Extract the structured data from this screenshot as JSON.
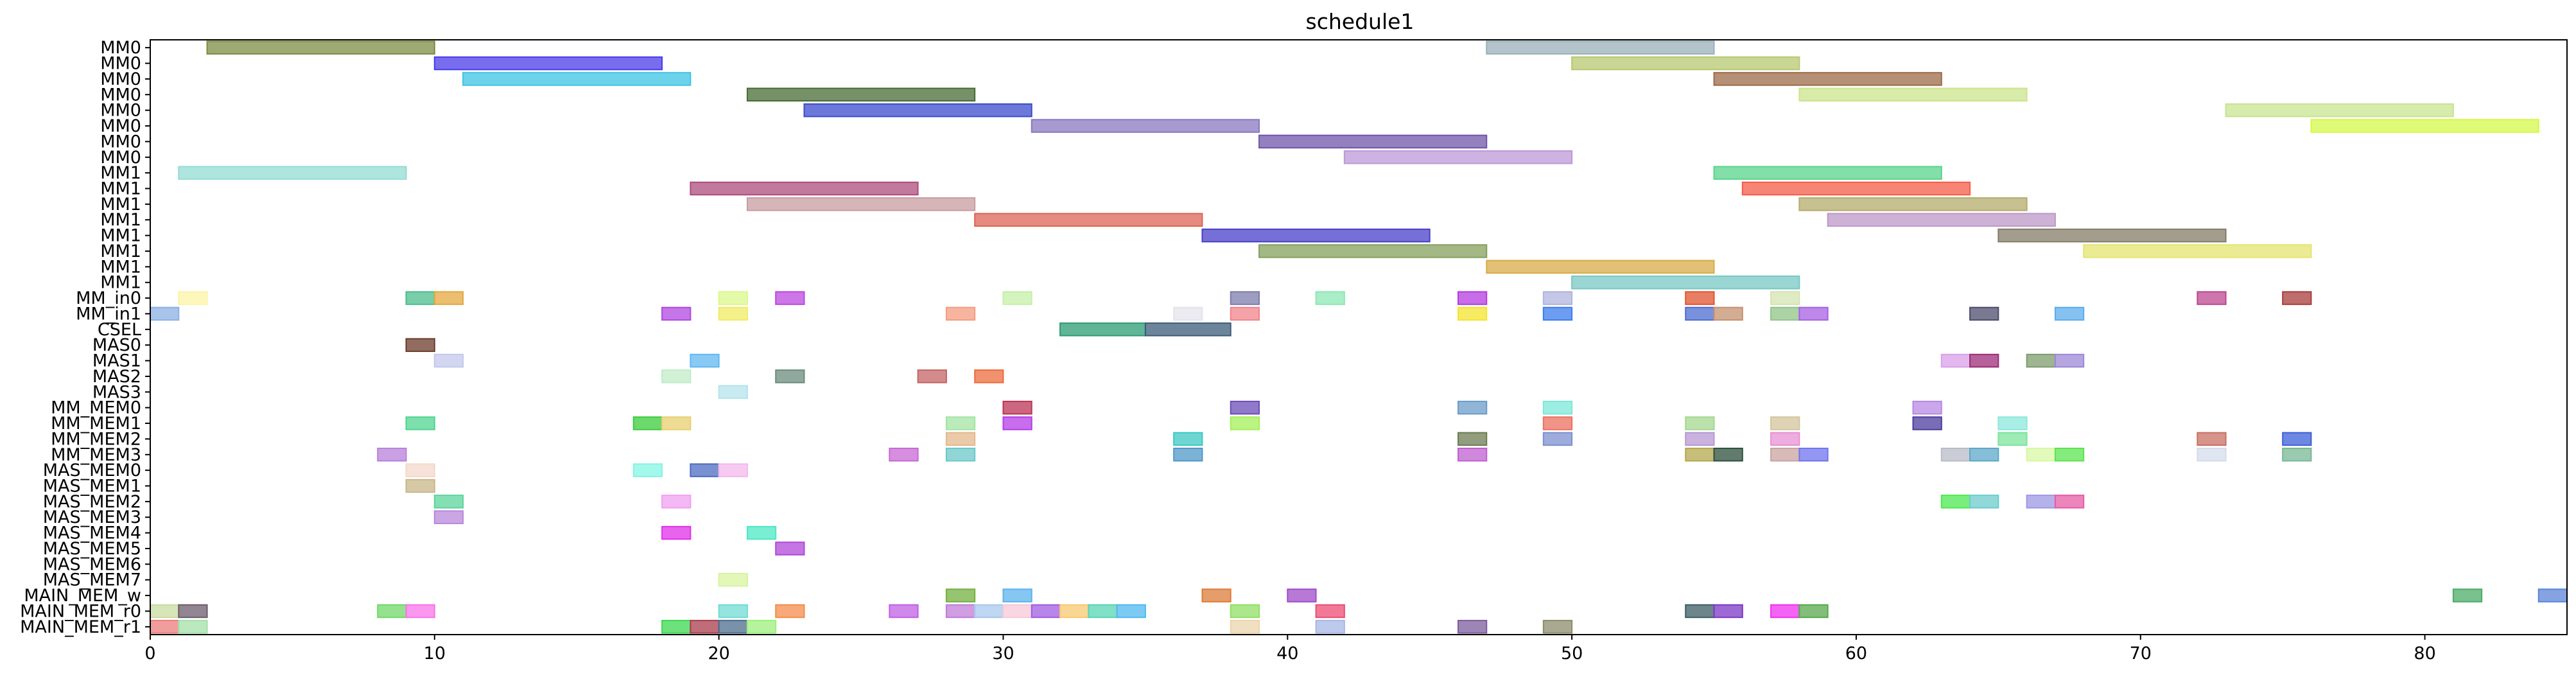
{
  "chart_data": {
    "type": "gantt",
    "title": "schedule1",
    "xlabel": "",
    "ylabel": "",
    "xlim": [
      0,
      85
    ],
    "x_ticks": [
      0,
      10,
      20,
      30,
      40,
      50,
      60,
      70,
      80
    ],
    "grid": false,
    "rows": [
      "MM0",
      "MM0",
      "MM0",
      "MM0",
      "MM0",
      "MM0",
      "MM0",
      "MM0",
      "MM1",
      "MM1",
      "MM1",
      "MM1",
      "MM1",
      "MM1",
      "MM1",
      "MM1",
      "MM_in0",
      "MM_in1",
      "CSEL",
      "MAS0",
      "MAS1",
      "MAS2",
      "MAS3",
      "MM_MEM0",
      "MM_MEM1",
      "MM_MEM2",
      "MM_MEM3",
      "MAS_MEM0",
      "MAS_MEM1",
      "MAS_MEM2",
      "MAS_MEM3",
      "MAS_MEM4",
      "MAS_MEM5",
      "MAS_MEM6",
      "MAS_MEM7",
      "MAIN_MEM_w",
      "MAIN_MEM_r0",
      "MAIN_MEM_r1"
    ],
    "tasks": [
      {
        "row": 0,
        "start": 2,
        "end": 10,
        "color": "#7d8c44"
      },
      {
        "row": 0,
        "start": 47,
        "end": 55,
        "color": "#9ab0b8"
      },
      {
        "row": 1,
        "start": 10,
        "end": 18,
        "color": "#4a3ce8"
      },
      {
        "row": 1,
        "start": 50,
        "end": 58,
        "color": "#b8c870"
      },
      {
        "row": 2,
        "start": 11,
        "end": 19,
        "color": "#3cc4e4"
      },
      {
        "row": 2,
        "start": 55,
        "end": 63,
        "color": "#9c6a48"
      },
      {
        "row": 3,
        "start": 21,
        "end": 29,
        "color": "#486c34"
      },
      {
        "row": 3,
        "start": 58,
        "end": 66,
        "color": "#cce48c"
      },
      {
        "row": 4,
        "start": 23,
        "end": 31,
        "color": "#3c4ccc"
      },
      {
        "row": 4,
        "start": 73,
        "end": 81,
        "color": "#c8e490"
      },
      {
        "row": 5,
        "start": 31,
        "end": 39,
        "color": "#8878c0"
      },
      {
        "row": 5,
        "start": 76,
        "end": 84,
        "color": "#d4f848"
      },
      {
        "row": 6,
        "start": 39,
        "end": 47,
        "color": "#7056a8"
      },
      {
        "row": 7,
        "start": 42,
        "end": 50,
        "color": "#bc98d8"
      },
      {
        "row": 8,
        "start": 1,
        "end": 9,
        "color": "#94dcd4"
      },
      {
        "row": 8,
        "start": 55,
        "end": 63,
        "color": "#58d48c"
      },
      {
        "row": 9,
        "start": 19,
        "end": 27,
        "color": "#ac4c7c"
      },
      {
        "row": 9,
        "start": 56,
        "end": 64,
        "color": "#f45c48"
      },
      {
        "row": 10,
        "start": 21,
        "end": 29,
        "color": "#c89ca0"
      },
      {
        "row": 10,
        "start": 58,
        "end": 66,
        "color": "#b4ac6c"
      },
      {
        "row": 11,
        "start": 29,
        "end": 37,
        "color": "#dc6454"
      },
      {
        "row": 11,
        "start": 59,
        "end": 67,
        "color": "#bc98c8"
      },
      {
        "row": 12,
        "start": 37,
        "end": 45,
        "color": "#4840c8"
      },
      {
        "row": 12,
        "start": 65,
        "end": 73,
        "color": "#847c68"
      },
      {
        "row": 13,
        "start": 39,
        "end": 47,
        "color": "#84a05c"
      },
      {
        "row": 13,
        "start": 68,
        "end": 76,
        "color": "#e4e470"
      },
      {
        "row": 14,
        "start": 47,
        "end": 55,
        "color": "#d8ac48"
      },
      {
        "row": 15,
        "start": 50,
        "end": 58,
        "color": "#78c8c4"
      },
      {
        "row": 16,
        "start": 1,
        "end": 2,
        "color": "#fcf4a8"
      },
      {
        "row": 16,
        "start": 9,
        "end": 10,
        "color": "#4cbc8c"
      },
      {
        "row": 16,
        "start": 10,
        "end": 11,
        "color": "#e4a840"
      },
      {
        "row": 16,
        "start": 20,
        "end": 21,
        "color": "#dcf88c"
      },
      {
        "row": 16,
        "start": 22,
        "end": 23,
        "color": "#bc48e0"
      },
      {
        "row": 16,
        "start": 30,
        "end": 31,
        "color": "#c4f0a8"
      },
      {
        "row": 16,
        "start": 38,
        "end": 39,
        "color": "#7c7cac"
      },
      {
        "row": 16,
        "start": 41,
        "end": 42,
        "color": "#8ce8b4"
      },
      {
        "row": 16,
        "start": 46,
        "end": 47,
        "color": "#b43ce0"
      },
      {
        "row": 16,
        "start": 49,
        "end": 50,
        "color": "#b0b4dc"
      },
      {
        "row": 16,
        "start": 54,
        "end": 55,
        "color": "#e05430"
      },
      {
        "row": 16,
        "start": 57,
        "end": 58,
        "color": "#d4e4b0"
      },
      {
        "row": 16,
        "start": 72,
        "end": 73,
        "color": "#bc4890"
      },
      {
        "row": 16,
        "start": 75,
        "end": 76,
        "color": "#a83c3c"
      },
      {
        "row": 17,
        "start": 0,
        "end": 1,
        "color": "#8cb0e4"
      },
      {
        "row": 17,
        "start": 18,
        "end": 19,
        "color": "#b048e0"
      },
      {
        "row": 17,
        "start": 20,
        "end": 21,
        "color": "#f0ec64"
      },
      {
        "row": 17,
        "start": 28,
        "end": 29,
        "color": "#f49c80"
      },
      {
        "row": 17,
        "start": 36,
        "end": 37,
        "color": "#e4e4ec"
      },
      {
        "row": 17,
        "start": 38,
        "end": 39,
        "color": "#f0848c"
      },
      {
        "row": 17,
        "start": 46,
        "end": 47,
        "color": "#f4e430"
      },
      {
        "row": 17,
        "start": 49,
        "end": 50,
        "color": "#3c7cec"
      },
      {
        "row": 17,
        "start": 54,
        "end": 55,
        "color": "#4c6cd0"
      },
      {
        "row": 17,
        "start": 55,
        "end": 56,
        "color": "#c49070"
      },
      {
        "row": 17,
        "start": 57,
        "end": 58,
        "color": "#90c488"
      },
      {
        "row": 17,
        "start": 58,
        "end": 59,
        "color": "#a860e4"
      },
      {
        "row": 17,
        "start": 64,
        "end": 65,
        "color": "#4c4c6c"
      },
      {
        "row": 17,
        "start": 67,
        "end": 68,
        "color": "#5cacec"
      },
      {
        "row": 18,
        "start": 32,
        "end": 35,
        "color": "#2c9c74"
      },
      {
        "row": 18,
        "start": 35,
        "end": 38,
        "color": "#3c5c78"
      },
      {
        "row": 19,
        "start": 9,
        "end": 10,
        "color": "#6c3c2c"
      },
      {
        "row": 20,
        "start": 10,
        "end": 11,
        "color": "#c4c8ec"
      },
      {
        "row": 20,
        "start": 19,
        "end": 20,
        "color": "#60b8f0"
      },
      {
        "row": 20,
        "start": 63,
        "end": 64,
        "color": "#d8a0e8"
      },
      {
        "row": 20,
        "start": 64,
        "end": 65,
        "color": "#9c2c78"
      },
      {
        "row": 20,
        "start": 66,
        "end": 67,
        "color": "#7c9c6c"
      },
      {
        "row": 20,
        "start": 67,
        "end": 68,
        "color": "#9c88d8"
      },
      {
        "row": 21,
        "start": 18,
        "end": 19,
        "color": "#c0ecc8"
      },
      {
        "row": 21,
        "start": 22,
        "end": 23,
        "color": "#6c8c7c"
      },
      {
        "row": 21,
        "start": 27,
        "end": 28,
        "color": "#c46464"
      },
      {
        "row": 21,
        "start": 29,
        "end": 30,
        "color": "#ec6c3c"
      },
      {
        "row": 22,
        "start": 20,
        "end": 21,
        "color": "#b4e4ec"
      },
      {
        "row": 23,
        "start": 30,
        "end": 31,
        "color": "#bc3454"
      },
      {
        "row": 23,
        "start": 38,
        "end": 39,
        "color": "#6c4cb8"
      },
      {
        "row": 23,
        "start": 46,
        "end": 47,
        "color": "#6c9cc8"
      },
      {
        "row": 23,
        "start": 49,
        "end": 50,
        "color": "#7ce8d8"
      },
      {
        "row": 23,
        "start": 62,
        "end": 63,
        "color": "#b888e4"
      },
      {
        "row": 24,
        "start": 9,
        "end": 10,
        "color": "#50d490"
      },
      {
        "row": 24,
        "start": 17,
        "end": 18,
        "color": "#3ccc3c"
      },
      {
        "row": 24,
        "start": 18,
        "end": 19,
        "color": "#e8d070"
      },
      {
        "row": 24,
        "start": 28,
        "end": 29,
        "color": "#a4e4a4"
      },
      {
        "row": 24,
        "start": 30,
        "end": 31,
        "color": "#b43ce8"
      },
      {
        "row": 24,
        "start": 38,
        "end": 39,
        "color": "#a4f058"
      },
      {
        "row": 24,
        "start": 49,
        "end": 50,
        "color": "#ec7060"
      },
      {
        "row": 24,
        "start": 54,
        "end": 55,
        "color": "#a4d890"
      },
      {
        "row": 24,
        "start": 57,
        "end": 58,
        "color": "#d4c49c"
      },
      {
        "row": 24,
        "start": 62,
        "end": 63,
        "color": "#4c3c9c"
      },
      {
        "row": 24,
        "start": 65,
        "end": 66,
        "color": "#8ce8dc"
      },
      {
        "row": 25,
        "start": 28,
        "end": 29,
        "color": "#e4b88c"
      },
      {
        "row": 25,
        "start": 36,
        "end": 37,
        "color": "#3cc8c4"
      },
      {
        "row": 25,
        "start": 46,
        "end": 47,
        "color": "#6c7c50"
      },
      {
        "row": 25,
        "start": 49,
        "end": 50,
        "color": "#7c90d0"
      },
      {
        "row": 25,
        "start": 54,
        "end": 55,
        "color": "#b898d4"
      },
      {
        "row": 25,
        "start": 57,
        "end": 58,
        "color": "#e890d4"
      },
      {
        "row": 25,
        "start": 65,
        "end": 66,
        "color": "#7ce49c"
      },
      {
        "row": 25,
        "start": 72,
        "end": 73,
        "color": "#c87064"
      },
      {
        "row": 25,
        "start": 75,
        "end": 76,
        "color": "#3c60d8"
      },
      {
        "row": 26,
        "start": 8,
        "end": 9,
        "color": "#b880dc"
      },
      {
        "row": 26,
        "start": 26,
        "end": 27,
        "color": "#c868d4"
      },
      {
        "row": 26,
        "start": 28,
        "end": 29,
        "color": "#6cc8c8"
      },
      {
        "row": 26,
        "start": 36,
        "end": 37,
        "color": "#5098c8"
      },
      {
        "row": 26,
        "start": 46,
        "end": 47,
        "color": "#c060d0"
      },
      {
        "row": 26,
        "start": 54,
        "end": 55,
        "color": "#b4a84c"
      },
      {
        "row": 26,
        "start": 55,
        "end": 56,
        "color": "#2c503c"
      },
      {
        "row": 26,
        "start": 57,
        "end": 58,
        "color": "#c8a4a0"
      },
      {
        "row": 26,
        "start": 58,
        "end": 59,
        "color": "#7074ec"
      },
      {
        "row": 26,
        "start": 63,
        "end": 64,
        "color": "#b8bcc8"
      },
      {
        "row": 26,
        "start": 64,
        "end": 65,
        "color": "#5ca8c8"
      },
      {
        "row": 26,
        "start": 66,
        "end": 67,
        "color": "#d8f8a4"
      },
      {
        "row": 26,
        "start": 67,
        "end": 68,
        "color": "#5ce450"
      },
      {
        "row": 26,
        "start": 72,
        "end": 73,
        "color": "#d4dcec"
      },
      {
        "row": 26,
        "start": 75,
        "end": 76,
        "color": "#78b894"
      },
      {
        "row": 27,
        "start": 9,
        "end": 10,
        "color": "#f4d8cc"
      },
      {
        "row": 27,
        "start": 17,
        "end": 18,
        "color": "#84f4e4"
      },
      {
        "row": 27,
        "start": 19,
        "end": 20,
        "color": "#4c6cc0"
      },
      {
        "row": 27,
        "start": 20,
        "end": 21,
        "color": "#f4b8ec"
      },
      {
        "row": 28,
        "start": 9,
        "end": 10,
        "color": "#c8b888"
      },
      {
        "row": 29,
        "start": 10,
        "end": 11,
        "color": "#5cd49c"
      },
      {
        "row": 29,
        "start": 18,
        "end": 19,
        "color": "#f0a0f0"
      },
      {
        "row": 29,
        "start": 63,
        "end": 64,
        "color": "#4ce850"
      },
      {
        "row": 29,
        "start": 64,
        "end": 65,
        "color": "#6ccccc"
      },
      {
        "row": 29,
        "start": 66,
        "end": 67,
        "color": "#9c98e4"
      },
      {
        "row": 29,
        "start": 67,
        "end": 68,
        "color": "#e45ca4"
      },
      {
        "row": 30,
        "start": 10,
        "end": 11,
        "color": "#b888dc"
      },
      {
        "row": 31,
        "start": 18,
        "end": 19,
        "color": "#e030e8"
      },
      {
        "row": 31,
        "start": 21,
        "end": 22,
        "color": "#4ce8c4"
      },
      {
        "row": 32,
        "start": 22,
        "end": 23,
        "color": "#b048d8"
      },
      {
        "row": 34,
        "start": 20,
        "end": 21,
        "color": "#d8f4a0"
      },
      {
        "row": 35,
        "start": 28,
        "end": 29,
        "color": "#74b040"
      },
      {
        "row": 35,
        "start": 30,
        "end": 31,
        "color": "#5cb4ec"
      },
      {
        "row": 35,
        "start": 37,
        "end": 38,
        "color": "#dc7c38"
      },
      {
        "row": 35,
        "start": 40,
        "end": 41,
        "color": "#a04cc8"
      },
      {
        "row": 35,
        "start": 81,
        "end": 82,
        "color": "#4cac68"
      },
      {
        "row": 35,
        "start": 84,
        "end": 85,
        "color": "#5c84d8"
      },
      {
        "row": 36,
        "start": 0,
        "end": 1,
        "color": "#c8dca0"
      },
      {
        "row": 36,
        "start": 1,
        "end": 2,
        "color": "#6c5c6c"
      },
      {
        "row": 36,
        "start": 8,
        "end": 9,
        "color": "#70d868"
      },
      {
        "row": 36,
        "start": 9,
        "end": 10,
        "color": "#f874e8"
      },
      {
        "row": 36,
        "start": 20,
        "end": 21,
        "color": "#70dcd4"
      },
      {
        "row": 36,
        "start": 22,
        "end": 23,
        "color": "#f48c4c"
      },
      {
        "row": 36,
        "start": 26,
        "end": 27,
        "color": "#c060e4"
      },
      {
        "row": 36,
        "start": 28,
        "end": 29,
        "color": "#c07cd8"
      },
      {
        "row": 36,
        "start": 29,
        "end": 30,
        "color": "#a8c8ec"
      },
      {
        "row": 36,
        "start": 30,
        "end": 31,
        "color": "#f8c8d8"
      },
      {
        "row": 36,
        "start": 31,
        "end": 32,
        "color": "#a05ce0"
      },
      {
        "row": 36,
        "start": 32,
        "end": 33,
        "color": "#f8c870"
      },
      {
        "row": 36,
        "start": 33,
        "end": 34,
        "color": "#58d4b4"
      },
      {
        "row": 36,
        "start": 34,
        "end": 35,
        "color": "#50b8f0"
      },
      {
        "row": 36,
        "start": 38,
        "end": 39,
        "color": "#90e064"
      },
      {
        "row": 36,
        "start": 41,
        "end": 42,
        "color": "#ec4c74"
      },
      {
        "row": 36,
        "start": 54,
        "end": 55,
        "color": "#3c5c64"
      },
      {
        "row": 36,
        "start": 55,
        "end": 56,
        "color": "#7c38c4"
      },
      {
        "row": 36,
        "start": 57,
        "end": 58,
        "color": "#f030f0"
      },
      {
        "row": 36,
        "start": 58,
        "end": 59,
        "color": "#58a84c"
      },
      {
        "row": 37,
        "start": 0,
        "end": 1,
        "color": "#ec7c7c"
      },
      {
        "row": 37,
        "start": 1,
        "end": 2,
        "color": "#a4e0a8"
      },
      {
        "row": 37,
        "start": 18,
        "end": 19,
        "color": "#3cd850"
      },
      {
        "row": 37,
        "start": 19,
        "end": 20,
        "color": "#a83c4c"
      },
      {
        "row": 37,
        "start": 20,
        "end": 21,
        "color": "#4c6c8c"
      },
      {
        "row": 37,
        "start": 21,
        "end": 22,
        "color": "#9cf07c"
      },
      {
        "row": 37,
        "start": 38,
        "end": 39,
        "color": "#ecd4ac"
      },
      {
        "row": 37,
        "start": 41,
        "end": 42,
        "color": "#a8b8e4"
      },
      {
        "row": 37,
        "start": 46,
        "end": 47,
        "color": "#7c5c9c"
      },
      {
        "row": 37,
        "start": 49,
        "end": 50,
        "color": "#8c8c6c"
      }
    ]
  }
}
